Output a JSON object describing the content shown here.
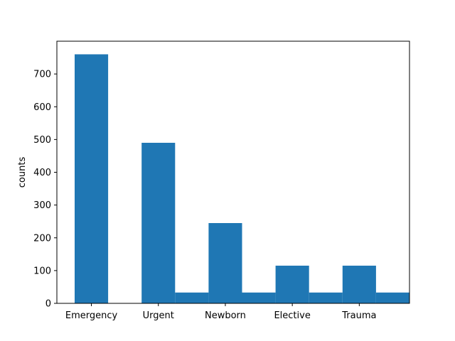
{
  "chart_data": {
    "type": "bar",
    "title": "",
    "xlabel": "",
    "ylabel": "counts",
    "categories": [
      "Emergency",
      "Urgent",
      "Newborn",
      "Elective",
      "Trauma"
    ],
    "values": [
      760,
      490,
      245,
      115,
      115
    ],
    "secondary_bars": [
      {
        "between": [
          "Urgent",
          "Newborn"
        ],
        "value": 33
      },
      {
        "between": [
          "Newborn",
          "Elective"
        ],
        "value": 33
      },
      {
        "between": [
          "Elective",
          "Trauma"
        ],
        "value": 33
      },
      {
        "between": [
          "Trauma",
          "end"
        ],
        "value": 33
      }
    ],
    "ylim": [
      0,
      800
    ],
    "yticks": [
      0,
      100,
      200,
      300,
      400,
      500,
      600,
      700
    ],
    "grid": false,
    "legend": "none",
    "bar_color": "#1f77b4"
  }
}
